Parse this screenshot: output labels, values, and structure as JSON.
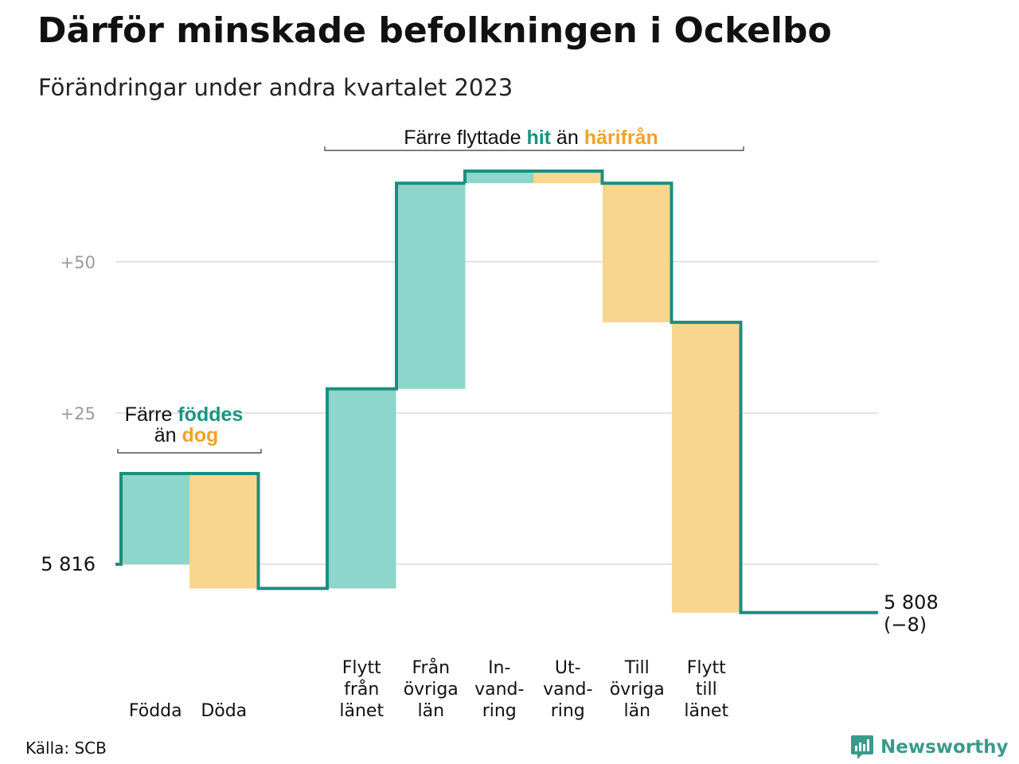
{
  "header": {
    "title": "Därför minskade befolkningen i Ockelbo",
    "subtitle": "Förändringar under andra kvartalet 2023"
  },
  "annotations": {
    "births_deaths": {
      "line1_prefix": "Färre",
      "line1_highlight": "föddes",
      "line2_prefix": "än",
      "line2_highlight": "dog"
    },
    "migration": {
      "prefix": "Färre flyttade",
      "highlight1": "hit",
      "middle": "än",
      "highlight2": "härifrån"
    }
  },
  "chart_data": {
    "type": "waterfall",
    "start": {
      "label": "5 816",
      "value": 5816
    },
    "end": {
      "label": "5 808",
      "change_label": "(−8)",
      "value": 5808
    },
    "y_ticks": [
      {
        "label": "+25",
        "value": 25
      },
      {
        "label": "+50",
        "value": 50
      }
    ],
    "steps": [
      {
        "category": [
          "Födda"
        ],
        "value": 15,
        "kind": "in"
      },
      {
        "category": [
          "Döda"
        ],
        "value": -19,
        "kind": "out"
      },
      {
        "category": [
          "Flytt",
          "från",
          "länet"
        ],
        "value": 33,
        "kind": "in"
      },
      {
        "category": [
          "Från",
          "övriga",
          "län"
        ],
        "value": 34,
        "kind": "in"
      },
      {
        "category": [
          "In-",
          "vand-",
          "ring"
        ],
        "value": 2,
        "kind": "in"
      },
      {
        "category": [
          "Ut-",
          "vand-",
          "ring"
        ],
        "value": -2,
        "kind": "out"
      },
      {
        "category": [
          "Till",
          "övriga",
          "län"
        ],
        "value": -23,
        "kind": "out"
      },
      {
        "category": [
          "Flytt",
          "till",
          "länet"
        ],
        "value": -48,
        "kind": "out"
      }
    ],
    "colors": {
      "in": "#8ed5cc",
      "out": "#f9d68d",
      "line": "#1a8f80",
      "in_text": "#1a9484",
      "out_text": "#f0a329",
      "grid": "#e3e3e3",
      "tick_text": "#9a9a9a"
    }
  },
  "footer": {
    "source": "Källa: SCB",
    "brand": "Newsworthy",
    "brand_icon": "bar-chart-bubble-icon",
    "brand_color": "#3a9a8c"
  }
}
